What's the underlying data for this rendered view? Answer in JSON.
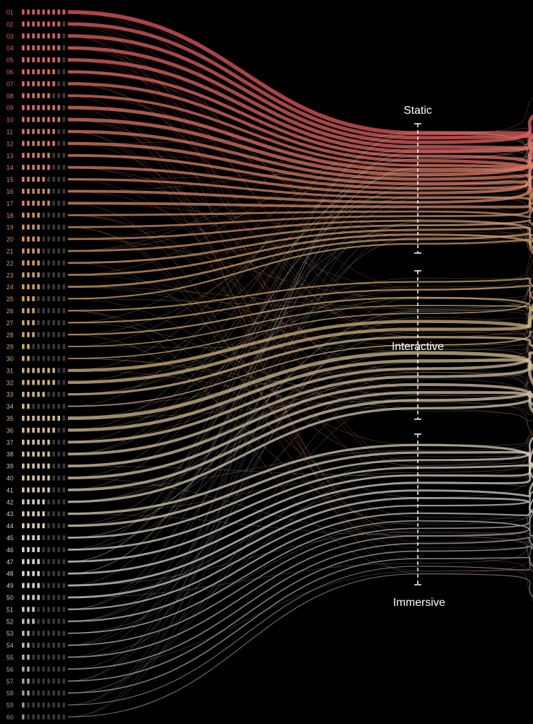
{
  "diagram": {
    "categories": [
      {
        "key": "static",
        "label": "Static"
      },
      {
        "key": "interactive",
        "label": "Interactive"
      },
      {
        "key": "immersive",
        "label": "Immersive"
      }
    ],
    "colors": {
      "background": "#000000",
      "static_red": "#e05a5f",
      "tan": "#c9a86a",
      "light": "#d8d4cc",
      "gray": "#8e939a",
      "axis": "#ffffff",
      "dim_square": "#3a3a3a"
    },
    "rows": [
      {
        "label": "01",
        "filled": 9,
        "category": "static"
      },
      {
        "label": "02",
        "filled": 8,
        "category": "static"
      },
      {
        "label": "03",
        "filled": 8,
        "category": "static"
      },
      {
        "label": "04",
        "filled": 8,
        "category": "static"
      },
      {
        "label": "05",
        "filled": 8,
        "category": "static"
      },
      {
        "label": "06",
        "filled": 7,
        "category": "static"
      },
      {
        "label": "07",
        "filled": 7,
        "category": "static"
      },
      {
        "label": "08",
        "filled": 6,
        "category": "static"
      },
      {
        "label": "09",
        "filled": 8,
        "category": "static"
      },
      {
        "label": "10",
        "filled": 8,
        "category": "static"
      },
      {
        "label": "11",
        "filled": 7,
        "category": "static"
      },
      {
        "label": "12",
        "filled": 7,
        "category": "static"
      },
      {
        "label": "13",
        "filled": 6,
        "category": "static"
      },
      {
        "label": "14",
        "filled": 6,
        "category": "static"
      },
      {
        "label": "15",
        "filled": 5,
        "category": "static"
      },
      {
        "label": "16",
        "filled": 6,
        "category": "static"
      },
      {
        "label": "17",
        "filled": 6,
        "category": "static"
      },
      {
        "label": "18",
        "filled": 4,
        "category": "static"
      },
      {
        "label": "19",
        "filled": 4,
        "category": "static"
      },
      {
        "label": "20",
        "filled": 4,
        "category": "static"
      },
      {
        "label": "21",
        "filled": 4,
        "category": "static"
      },
      {
        "label": "22",
        "filled": 4,
        "category": "static"
      },
      {
        "label": "23",
        "filled": 4,
        "category": "static"
      },
      {
        "label": "24",
        "filled": 4,
        "category": "static"
      },
      {
        "label": "25",
        "filled": 3,
        "category": "static"
      },
      {
        "label": "26",
        "filled": 3,
        "category": "interactive"
      },
      {
        "label": "27",
        "filled": 3,
        "category": "interactive"
      },
      {
        "label": "28",
        "filled": 3,
        "category": "interactive"
      },
      {
        "label": "29",
        "filled": 2,
        "category": "interactive"
      },
      {
        "label": "30",
        "filled": 2,
        "category": "interactive"
      },
      {
        "label": "31",
        "filled": 7,
        "category": "interactive"
      },
      {
        "label": "32",
        "filled": 7,
        "category": "interactive"
      },
      {
        "label": "33",
        "filled": 5,
        "category": "interactive"
      },
      {
        "label": "34",
        "filled": 2,
        "category": "interactive"
      },
      {
        "label": "35",
        "filled": 8,
        "category": "interactive"
      },
      {
        "label": "36",
        "filled": 7,
        "category": "interactive"
      },
      {
        "label": "37",
        "filled": 6,
        "category": "interactive"
      },
      {
        "label": "38",
        "filled": 6,
        "category": "interactive"
      },
      {
        "label": "39",
        "filled": 6,
        "category": "interactive"
      },
      {
        "label": "40",
        "filled": 6,
        "category": "interactive"
      },
      {
        "label": "41",
        "filled": 6,
        "category": "interactive"
      },
      {
        "label": "42",
        "filled": 5,
        "category": "interactive"
      },
      {
        "label": "43",
        "filled": 5,
        "category": "immersive"
      },
      {
        "label": "44",
        "filled": 5,
        "category": "immersive"
      },
      {
        "label": "45",
        "filled": 4,
        "category": "immersive"
      },
      {
        "label": "46",
        "filled": 4,
        "category": "immersive"
      },
      {
        "label": "47",
        "filled": 4,
        "category": "immersive"
      },
      {
        "label": "48",
        "filled": 4,
        "category": "immersive"
      },
      {
        "label": "49",
        "filled": 4,
        "category": "immersive"
      },
      {
        "label": "50",
        "filled": 4,
        "category": "immersive"
      },
      {
        "label": "51",
        "filled": 3,
        "category": "immersive"
      },
      {
        "label": "52",
        "filled": 3,
        "category": "immersive"
      },
      {
        "label": "53",
        "filled": 2,
        "category": "immersive"
      },
      {
        "label": "54",
        "filled": 2,
        "category": "immersive"
      },
      {
        "label": "55",
        "filled": 2,
        "category": "immersive"
      },
      {
        "label": "56",
        "filled": 2,
        "category": "immersive"
      },
      {
        "label": "57",
        "filled": 2,
        "category": "immersive"
      },
      {
        "label": "58",
        "filled": 2,
        "category": "immersive"
      },
      {
        "label": "59",
        "filled": 1,
        "category": "immersive"
      },
      {
        "label": "60",
        "filled": 1,
        "category": "immersive"
      }
    ]
  }
}
